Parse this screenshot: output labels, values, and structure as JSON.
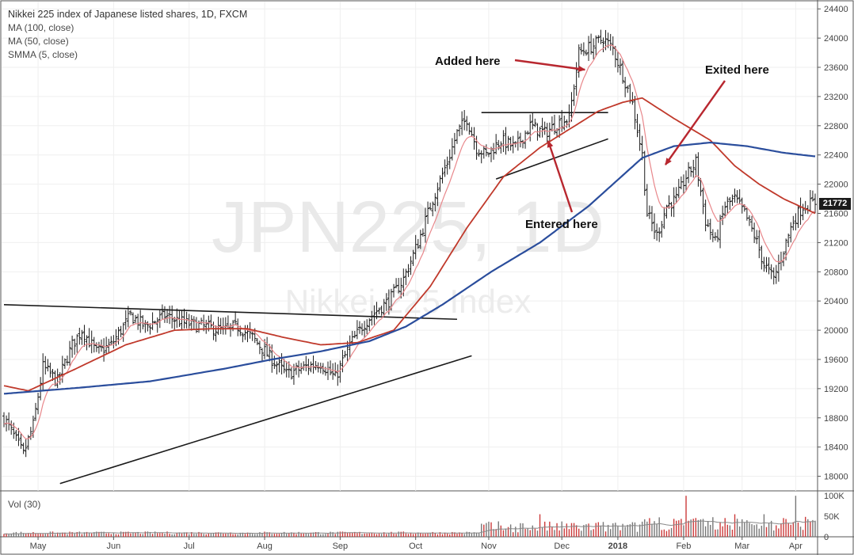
{
  "chart_data": {
    "type": "candlestick",
    "title": "Nikkei 225 index of Japanese listed shares, 1D, FXCM",
    "watermark": {
      "symbol": "JPN225, 1D",
      "name": "Nikkei 225 Index"
    },
    "indicators": [
      {
        "label": "MA (100, close)",
        "color": "#2a4d9c"
      },
      {
        "label": "MA (50, close)",
        "color": "#c0392b"
      },
      {
        "label": "SMMA (5, close)",
        "color": "#e8878b"
      }
    ],
    "ylim": [
      17800,
      24500
    ],
    "y_ticks": [
      "24400",
      "24000",
      "23600",
      "23200",
      "22800",
      "22400",
      "22000",
      "21600",
      "21200",
      "20800",
      "20400",
      "20000",
      "19600",
      "19200",
      "18800",
      "18400",
      "18000"
    ],
    "x_ticks": [
      "May",
      "Jun",
      "Jul",
      "Aug",
      "Sep",
      "Oct",
      "Nov",
      "Dec",
      "2018",
      "Feb",
      "Mar",
      "Apr"
    ],
    "last_price": "21772",
    "price_anchors": [
      [
        0,
        18800
      ],
      [
        8,
        18300
      ],
      [
        12,
        18700
      ],
      [
        16,
        19500
      ],
      [
        22,
        19300
      ],
      [
        28,
        19800
      ],
      [
        32,
        20000
      ],
      [
        38,
        19700
      ],
      [
        44,
        19800
      ],
      [
        52,
        20200
      ],
      [
        58,
        20050
      ],
      [
        66,
        20200
      ],
      [
        74,
        20100
      ],
      [
        82,
        20050
      ],
      [
        90,
        20000
      ],
      [
        96,
        20050
      ],
      [
        102,
        19900
      ],
      [
        110,
        19600
      ],
      [
        116,
        19400
      ],
      [
        124,
        19500
      ],
      [
        130,
        19550
      ],
      [
        136,
        19350
      ],
      [
        142,
        19800
      ],
      [
        148,
        20100
      ],
      [
        154,
        20300
      ],
      [
        158,
        20400
      ],
      [
        164,
        20700
      ],
      [
        170,
        21200
      ],
      [
        176,
        21800
      ],
      [
        182,
        22300
      ],
      [
        186,
        22700
      ],
      [
        190,
        22900
      ],
      [
        194,
        22500
      ],
      [
        198,
        22400
      ],
      [
        204,
        22600
      ],
      [
        210,
        22500
      ],
      [
        216,
        22800
      ],
      [
        222,
        22700
      ],
      [
        228,
        22850
      ],
      [
        232,
        22900
      ],
      [
        236,
        23800
      ],
      [
        242,
        23900
      ],
      [
        246,
        24000
      ],
      [
        250,
        23850
      ],
      [
        254,
        23500
      ],
      [
        258,
        23100
      ],
      [
        262,
        22400
      ],
      [
        264,
        21600
      ],
      [
        268,
        21300
      ],
      [
        272,
        21700
      ],
      [
        276,
        21800
      ],
      [
        280,
        22100
      ],
      [
        284,
        22300
      ],
      [
        288,
        21500
      ],
      [
        292,
        21200
      ],
      [
        296,
        21700
      ],
      [
        300,
        21800
      ],
      [
        304,
        21600
      ],
      [
        308,
        21300
      ],
      [
        312,
        20900
      ],
      [
        316,
        20700
      ],
      [
        320,
        21100
      ],
      [
        324,
        21500
      ],
      [
        328,
        21700
      ],
      [
        333,
        21750
      ]
    ],
    "ma100_anchors": [
      [
        0,
        19130
      ],
      [
        30,
        19210
      ],
      [
        60,
        19300
      ],
      [
        90,
        19470
      ],
      [
        110,
        19600
      ],
      [
        130,
        19710
      ],
      [
        150,
        19850
      ],
      [
        165,
        20050
      ],
      [
        180,
        20350
      ],
      [
        200,
        20800
      ],
      [
        220,
        21200
      ],
      [
        240,
        21700
      ],
      [
        255,
        22150
      ],
      [
        262,
        22360
      ],
      [
        275,
        22520
      ],
      [
        290,
        22570
      ],
      [
        305,
        22520
      ],
      [
        320,
        22430
      ],
      [
        333,
        22380
      ]
    ],
    "ma50_anchors": [
      [
        0,
        19240
      ],
      [
        10,
        19170
      ],
      [
        30,
        19480
      ],
      [
        50,
        19800
      ],
      [
        70,
        20000
      ],
      [
        85,
        20020
      ],
      [
        100,
        20020
      ],
      [
        115,
        19900
      ],
      [
        130,
        19800
      ],
      [
        145,
        19830
      ],
      [
        160,
        20000
      ],
      [
        175,
        20600
      ],
      [
        190,
        21400
      ],
      [
        205,
        22100
      ],
      [
        220,
        22500
      ],
      [
        232,
        22750
      ],
      [
        244,
        23000
      ],
      [
        254,
        23120
      ],
      [
        262,
        23180
      ],
      [
        275,
        22900
      ],
      [
        290,
        22600
      ],
      [
        300,
        22250
      ],
      [
        310,
        22000
      ],
      [
        320,
        21800
      ],
      [
        333,
        21600
      ]
    ],
    "volume_label": "Vol (30)",
    "volume_ticks": [
      "100K",
      "50K",
      "0"
    ],
    "volume_ylim": [
      0,
      110
    ],
    "annotations": [
      {
        "text": "Added here"
      },
      {
        "text": "Entered here"
      },
      {
        "text": "Exited here"
      }
    ],
    "colors": {
      "bars": "#1a1a1a",
      "arrow": "#b8272f",
      "trendline": "#1a1a1a",
      "vol_up": "#cc3b3b",
      "vol_down": "#777777"
    }
  }
}
